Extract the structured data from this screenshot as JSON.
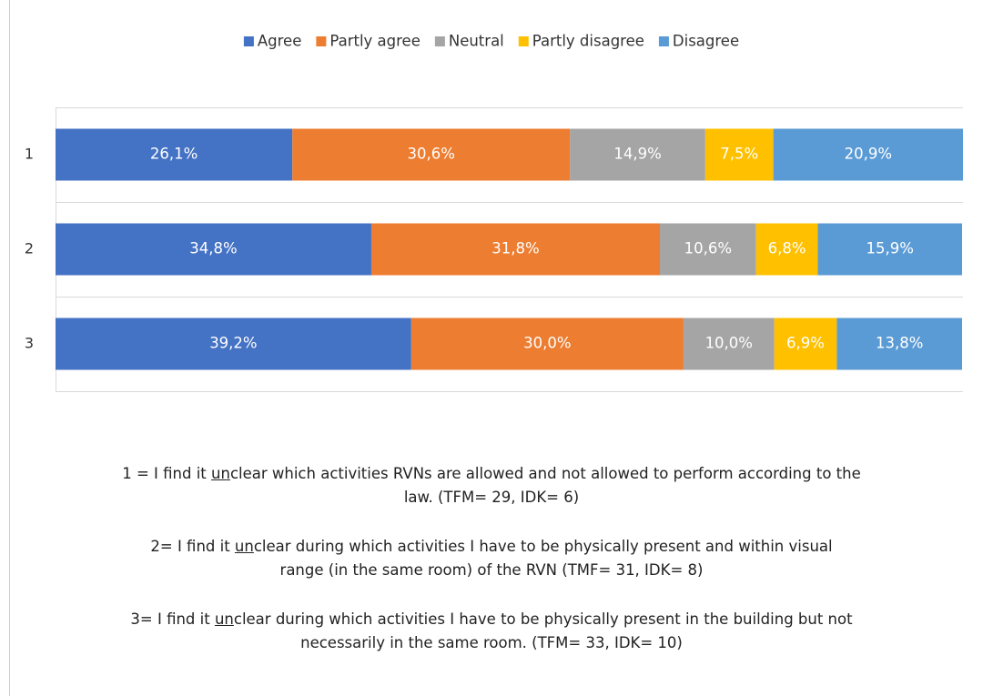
{
  "chart_data": {
    "type": "stacked-bar-horizontal",
    "categories": [
      "1",
      "2",
      "3"
    ],
    "xlim": [
      0,
      100
    ],
    "series": [
      {
        "name": "Agree",
        "color": "#4472c4",
        "values": [
          26.1,
          34.8,
          39.2
        ],
        "value_labels": [
          "26,1%",
          "34,8%",
          "39,2%"
        ]
      },
      {
        "name": "Partly agree",
        "color": "#ed7d31",
        "values": [
          30.6,
          31.8,
          30.0
        ],
        "value_labels": [
          "30,6%",
          "31,8%",
          "30,0%"
        ]
      },
      {
        "name": "Neutral",
        "color": "#a5a5a5",
        "values": [
          14.9,
          10.6,
          10.0
        ],
        "value_labels": [
          "14,9%",
          "10,6%",
          "10,0%"
        ]
      },
      {
        "name": "Partly disagree",
        "color": "#ffc000",
        "values": [
          7.5,
          6.8,
          6.9
        ],
        "value_labels": [
          "7,5%",
          "6,8%",
          "6,9%"
        ]
      },
      {
        "name": "Disagree",
        "color": "#5b9bd5",
        "values": [
          20.9,
          15.9,
          13.8
        ],
        "value_labels": [
          "20,9%",
          "15,9%",
          "13,8%"
        ]
      }
    ],
    "legend": "top"
  },
  "notes": [
    {
      "before": "1 = I find it ",
      "underlined": "un",
      "after": "clear which activities RVNs are allowed and not allowed to perform according to the",
      "second_line": "law. (TFM= 29, IDK= 6)"
    },
    {
      "before": "2= I find it ",
      "underlined": "un",
      "after": "clear during which activities I have to be physically present and within visual",
      "second_line": "range (in the same room) of the RVN (TMF= 31, IDK= 8)"
    },
    {
      "before": "3= I find it ",
      "underlined": "un",
      "after": "clear during which activities I have to be physically present in the building but not",
      "second_line": "necessarily in the same room. (TFM= 33, IDK= 10)"
    }
  ]
}
